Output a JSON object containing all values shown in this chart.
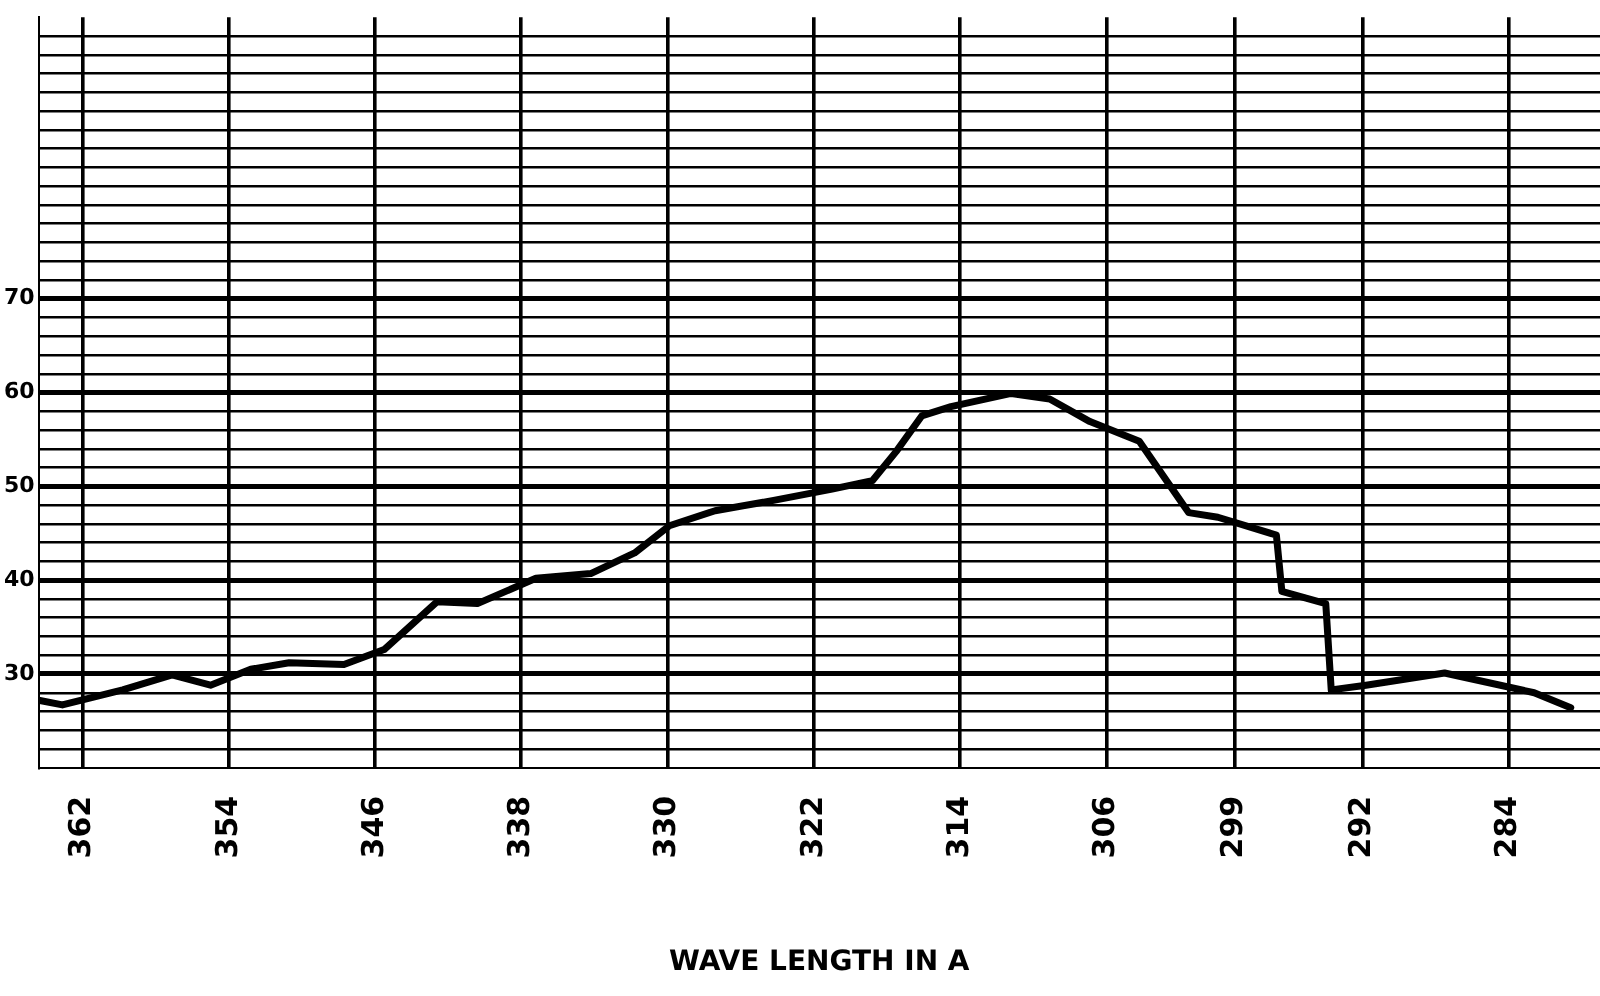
{
  "chart_data": {
    "type": "line",
    "xlabel": "WAVE LENGTH IN A",
    "x": [
      364.4,
      363.1,
      359.8,
      357.1,
      355.0,
      352.8,
      350.7,
      347.7,
      345.5,
      342.6,
      340.4,
      337.2,
      334.2,
      331.8,
      329.9,
      327.4,
      324.2,
      321.0,
      318.8,
      317.5,
      316.1,
      314.5,
      311.2,
      309.1,
      306.9,
      304.2,
      301.5,
      299.9,
      296.7,
      296.4,
      294.0,
      293.7,
      291.8,
      287.5,
      282.6,
      280.6
    ],
    "series": [
      {
        "color": "#000000",
        "values": [
          27.2,
          26.7,
          28.3,
          29.9,
          28.8,
          30.5,
          31.2,
          31.0,
          32.6,
          37.7,
          37.5,
          40.2,
          40.7,
          42.9,
          45.8,
          47.4,
          48.5,
          49.7,
          50.6,
          53.7,
          57.5,
          58.5,
          59.9,
          59.3,
          56.9,
          54.8,
          47.2,
          46.7,
          44.8,
          38.8,
          37.5,
          28.3,
          28.8,
          30.1,
          28.0,
          26.4
        ]
      }
    ],
    "xlim": [
      364.4,
      279
    ],
    "xticks": [
      362,
      354,
      346,
      338,
      330,
      322,
      314,
      306,
      299,
      292,
      284
    ],
    "ylim": [
      20,
      100
    ],
    "yticks": [
      {
        "value": 22,
        "label": null
      },
      {
        "value": 24,
        "label": null
      },
      {
        "value": 26,
        "label": null
      },
      {
        "value": 28,
        "label": null
      },
      30,
      {
        "value": 32,
        "label": null
      },
      {
        "value": 34,
        "label": null
      },
      {
        "value": 36,
        "label": null
      },
      {
        "value": 38,
        "label": null
      },
      40,
      {
        "value": 42,
        "label": null
      },
      {
        "value": 44,
        "label": null
      },
      {
        "value": 46,
        "label": null
      },
      {
        "value": 48,
        "label": null
      },
      50,
      {
        "value": 52,
        "label": null
      },
      {
        "value": 54,
        "label": null
      },
      {
        "value": 56,
        "label": null
      },
      {
        "value": 58,
        "label": null
      },
      60,
      {
        "value": 62,
        "label": null
      },
      {
        "value": 64,
        "label": null
      },
      {
        "value": 66,
        "label": null
      },
      {
        "value": 68,
        "label": null
      },
      70,
      {
        "value": 72,
        "label": null
      },
      {
        "value": 74,
        "label": null
      },
      {
        "value": 76,
        "label": null
      },
      {
        "value": 78,
        "label": null
      },
      {
        "value": 80,
        "label": null
      },
      {
        "value": 82,
        "label": null
      },
      {
        "value": 84,
        "label": null
      },
      {
        "value": 86,
        "label": null
      },
      {
        "value": 88,
        "label": null
      },
      {
        "value": 90,
        "label": null
      },
      {
        "value": 92,
        "label": null
      },
      {
        "value": 94,
        "label": null
      },
      {
        "value": 96,
        "label": null
      },
      {
        "value": 98,
        "label": null
      }
    ],
    "grid": true,
    "marker": "none",
    "line_style": "solid",
    "legend": false
  }
}
